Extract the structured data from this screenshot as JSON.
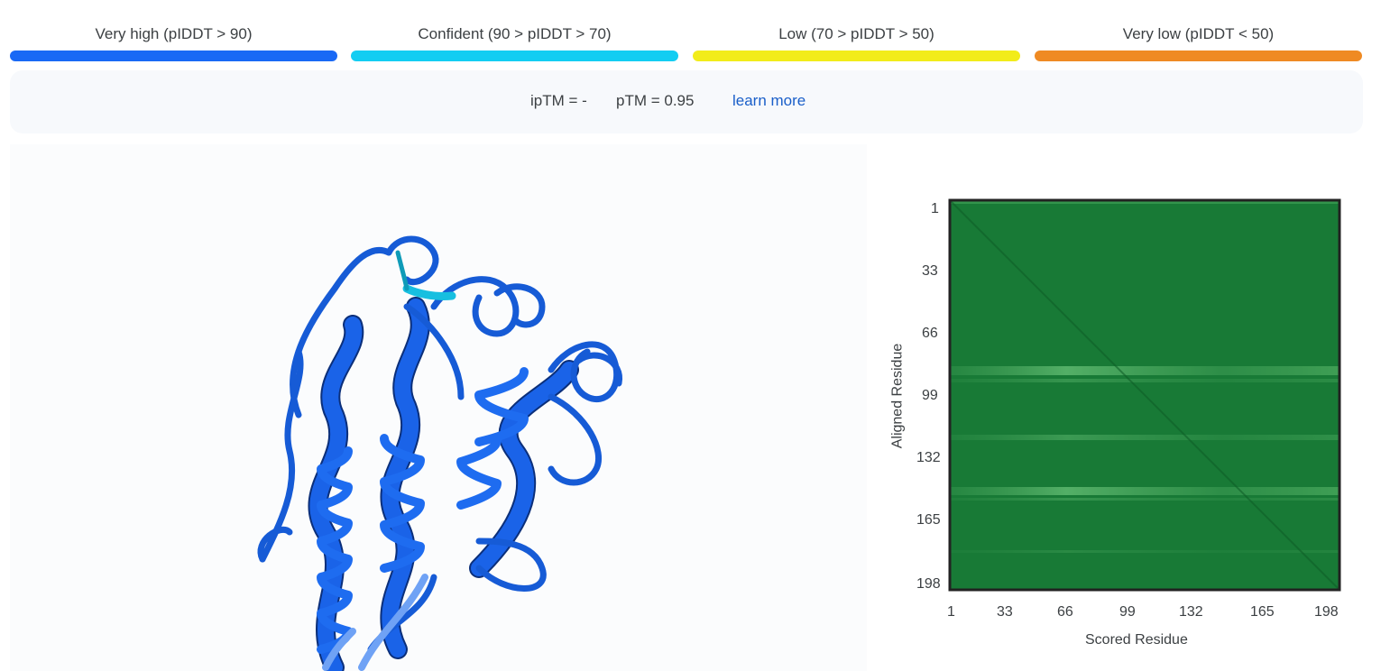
{
  "legend": {
    "items": [
      {
        "label": "Very high (pIDDT > 90)",
        "color": "#1969f5"
      },
      {
        "label": "Confident (90 > pIDDT > 70)",
        "color": "#13cdf2"
      },
      {
        "label": "Low (70 > pIDDT > 50)",
        "color": "#f2ec1a"
      },
      {
        "label": "Very low (pIDDT < 50)",
        "color": "#ef8a23"
      }
    ]
  },
  "metrics": {
    "iptm": "ipTM = -",
    "ptm": "pTM = 0.95",
    "learn_more": "learn more"
  },
  "structure_viewer": {
    "structure_color": "#1a63e8",
    "highlight_color": "#17bfe0"
  },
  "pae_plot": {
    "y_label": "Aligned Residue",
    "x_label": "Scored Residue",
    "y_ticks": [
      "1",
      "33",
      "66",
      "99",
      "132",
      "165",
      "198"
    ],
    "x_ticks": [
      "1",
      "33",
      "66",
      "99",
      "132",
      "165",
      "198"
    ],
    "base_color": "#187a36",
    "light_color": "#3f9e56",
    "border_color": "#222222"
  }
}
